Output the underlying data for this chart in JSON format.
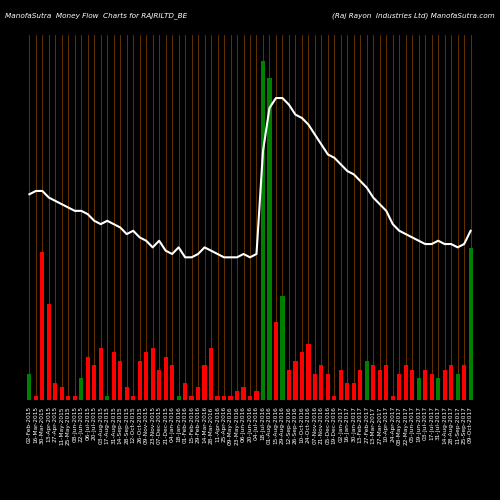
{
  "title_left": "ManofaSutra  Money Flow  Charts for RAJRILTD_BE",
  "title_right": "(Raj Rayon  Industries Ltd) ManofaSutra.com",
  "background_color": "#000000",
  "bar_colors": [
    "green",
    "red",
    "red",
    "red",
    "red",
    "red",
    "red",
    "red",
    "green",
    "red",
    "red",
    "red",
    "green",
    "red",
    "red",
    "red",
    "red",
    "red",
    "red",
    "red",
    "red",
    "red",
    "red",
    "green",
    "red",
    "red",
    "red",
    "red",
    "red",
    "red",
    "red",
    "red",
    "red",
    "red",
    "red",
    "red",
    "green",
    "green",
    "red",
    "green",
    "red",
    "red",
    "red",
    "red",
    "red",
    "red",
    "red",
    "red",
    "red",
    "red",
    "red",
    "red",
    "green",
    "red",
    "red",
    "red",
    "red",
    "red",
    "red",
    "red",
    "green",
    "red",
    "red",
    "green",
    "red",
    "red",
    "green",
    "red",
    "green"
  ],
  "bar_heights": [
    30,
    5,
    170,
    110,
    20,
    15,
    5,
    5,
    25,
    50,
    40,
    60,
    5,
    55,
    45,
    15,
    5,
    45,
    55,
    60,
    35,
    50,
    40,
    5,
    20,
    5,
    15,
    40,
    60,
    5,
    5,
    5,
    10,
    15,
    5,
    10,
    390,
    370,
    90,
    120,
    35,
    45,
    55,
    65,
    30,
    40,
    30,
    5,
    35,
    20,
    20,
    35,
    45,
    40,
    35,
    40,
    5,
    30,
    40,
    35,
    25,
    35,
    30,
    25,
    35,
    40,
    30,
    40,
    175
  ],
  "line_values": [
    62,
    63,
    63,
    61,
    60,
    59,
    58,
    57,
    57,
    56,
    54,
    53,
    54,
    53,
    52,
    50,
    51,
    49,
    48,
    46,
    48,
    45,
    44,
    46,
    43,
    43,
    44,
    46,
    45,
    44,
    43,
    43,
    43,
    44,
    43,
    44,
    75,
    88,
    91,
    91,
    89,
    86,
    85,
    83,
    80,
    77,
    74,
    73,
    71,
    69,
    68,
    66,
    64,
    61,
    59,
    57,
    53,
    51,
    50,
    49,
    48,
    47,
    47,
    48,
    47,
    47,
    46,
    47,
    51
  ],
  "grid_color": "#8B4500",
  "line_color": "#ffffff",
  "xlabel_color": "#ffffff",
  "tick_fontsize": 4.2,
  "n_bars": 69,
  "bar_ylim": 420,
  "line_ylim_min": 0,
  "line_ylim_max": 110,
  "labels": [
    "02-Feb-2015",
    "16-Mar-2015",
    "30-Mar-2015",
    "13-Apr-2015",
    "27-Apr-2015",
    "11-May-2015",
    "25-May-2015",
    "08-Jun-2015",
    "22-Jun-2015",
    "06-Jul-2015",
    "20-Jul-2015",
    "03-Aug-2015",
    "17-Aug-2015",
    "31-Aug-2015",
    "14-Sep-2015",
    "28-Sep-2015",
    "12-Oct-2015",
    "26-Oct-2015",
    "09-Nov-2015",
    "23-Nov-2015",
    "07-Dec-2015",
    "21-Dec-2015",
    "04-Jan-2016",
    "18-Jan-2016",
    "01-Feb-2016",
    "15-Feb-2016",
    "29-Feb-2016",
    "14-Mar-2016",
    "28-Mar-2016",
    "11-Apr-2016",
    "25-Apr-2016",
    "09-May-2016",
    "23-May-2016",
    "06-Jun-2016",
    "20-Jun-2016",
    "04-Jul-2016",
    "18-Jul-2016",
    "01-Aug-2016",
    "15-Aug-2016",
    "29-Aug-2016",
    "12-Sep-2016",
    "26-Sep-2016",
    "10-Oct-2016",
    "24-Oct-2016",
    "07-Nov-2016",
    "21-Nov-2016",
    "05-Dec-2016",
    "19-Dec-2016",
    "02-Jan-2017",
    "16-Jan-2017",
    "30-Jan-2017",
    "13-Feb-2017",
    "27-Feb-2017",
    "13-Mar-2017",
    "27-Mar-2017",
    "10-Apr-2017",
    "24-Apr-2017",
    "08-May-2017",
    "22-May-2017",
    "05-Jun-2017",
    "19-Jun-2017",
    "03-Jul-2017",
    "17-Jul-2017",
    "31-Jul-2017",
    "14-Aug-2017",
    "28-Aug-2017",
    "11-Sep-2017",
    "25-Sep-2017",
    "09-Oct-2017"
  ]
}
